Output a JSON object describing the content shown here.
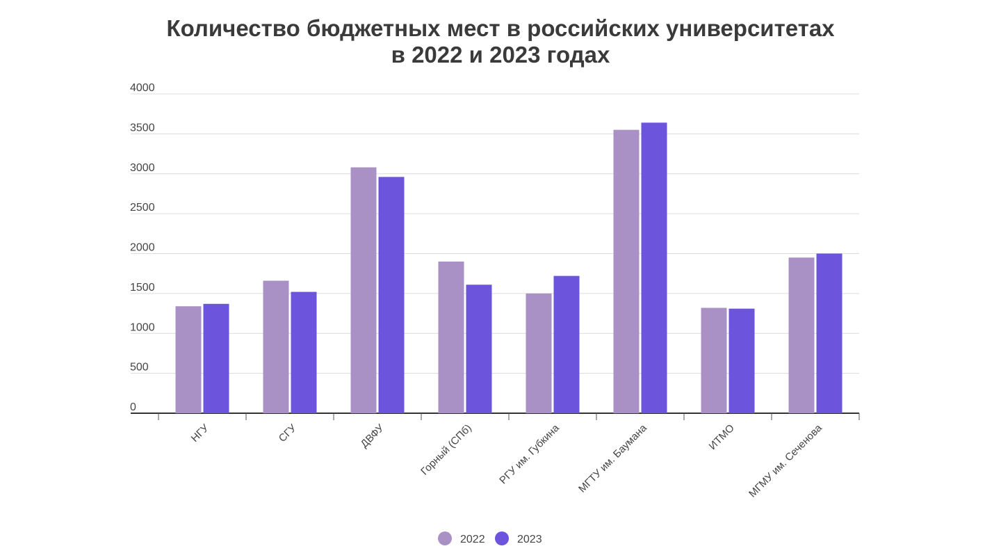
{
  "chart_data": {
    "type": "bar",
    "title_line1": "Количество бюджетных мест в российских университетах",
    "title_line2": "в 2022 и 2023 годах",
    "categories": [
      "НГУ",
      "СГУ",
      "ДВФУ",
      "Горный (СПб)",
      "РГУ им. Губкина",
      "МГТУ им. Баумана",
      "ИТМО",
      "МГМУ им. Сеченова"
    ],
    "series": [
      {
        "name": "2022",
        "color": "#a991c6",
        "values": [
          1340,
          1660,
          3080,
          1900,
          1500,
          3550,
          1320,
          1950
        ]
      },
      {
        "name": "2023",
        "color": "#6c54dc",
        "values": [
          1370,
          1520,
          2960,
          1610,
          1720,
          3640,
          1310,
          2000
        ]
      }
    ],
    "ylim": [
      0,
      4000
    ],
    "yticks": [
      "0",
      "500",
      "1000",
      "1500",
      "2000",
      "2500",
      "3000",
      "3500",
      "4000"
    ],
    "grid": true,
    "legend": "bottom-center"
  }
}
